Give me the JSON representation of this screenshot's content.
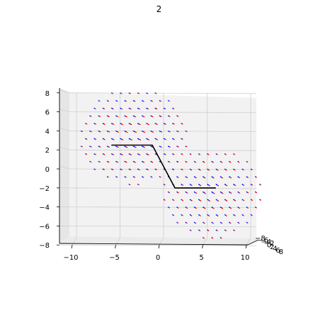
{
  "chart_data": {
    "type": "quiver3d",
    "title": "2",
    "xlabel": "",
    "ylabel": "",
    "zlabel": "",
    "x_ticks": [
      "−10",
      "−5",
      "0",
      "5",
      "10"
    ],
    "y_ticks": [
      "−8",
      "−6",
      "−4",
      "−2",
      "0",
      "2",
      "4",
      "6",
      "8"
    ],
    "depth_ticks": [
      "−8",
      "−6",
      "−4",
      "−2",
      "0",
      "2",
      "4",
      "6",
      "8"
    ],
    "xlim": [
      -12,
      11
    ],
    "ylim": [
      -8,
      8
    ],
    "grid": true,
    "colors": {
      "vector_head": "#ff0000",
      "vector_tail": "#0000ff",
      "path": "#000000"
    },
    "path": [
      [
        -6,
        2.5
      ],
      [
        -1.3,
        2.5
      ],
      [
        1.3,
        -2
      ],
      [
        6,
        -2
      ]
    ],
    "vector_fields": [
      {
        "name": "",
        "center": [
          -3.5,
          3.5
        ],
        "radius": 6.5,
        "direction": [
          0.55,
          -0.25
        ]
      },
      {
        "name": "",
        "center": [
          5.5,
          -2.5
        ],
        "radius": 6.0,
        "direction": [
          0.5,
          -0.3
        ]
      }
    ]
  }
}
